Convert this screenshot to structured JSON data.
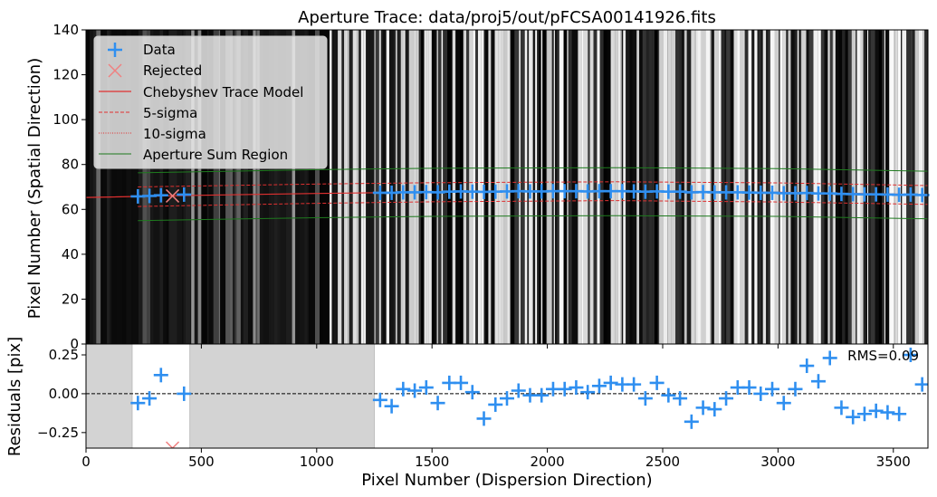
{
  "chart_data": [
    {
      "type": "scatter",
      "title": "Aperture Trace: data/proj5/out/pFCSA00141926.fits",
      "xlabel": "",
      "ylabel": "Pixel Number (Spatial Direction)",
      "xlim": [
        0,
        3650
      ],
      "ylim": [
        0,
        140
      ],
      "y_ticks": [
        0,
        20,
        40,
        60,
        80,
        100,
        120,
        140
      ],
      "grid": false,
      "legend_position": "top-left",
      "background": "2D spectral image rendered in grayscale (black with white vertical bands)",
      "legend": [
        "Data",
        "Rejected",
        "Chebyshev Trace Model",
        "5-sigma",
        "10-sigma",
        "Aperture Sum Region"
      ],
      "series": [
        {
          "name": "Data",
          "marker": "+",
          "color": "#2f8ff0",
          "x": [
            225,
            275,
            325,
            425,
            1275,
            1325,
            1375,
            1425,
            1475,
            1525,
            1575,
            1625,
            1675,
            1725,
            1775,
            1825,
            1875,
            1925,
            1975,
            2025,
            2075,
            2125,
            2175,
            2225,
            2275,
            2325,
            2375,
            2425,
            2475,
            2525,
            2575,
            2625,
            2675,
            2725,
            2775,
            2825,
            2875,
            2925,
            2975,
            3025,
            3075,
            3125,
            3175,
            3225,
            3275,
            3325,
            3375,
            3425,
            3475,
            3525,
            3575,
            3625
          ],
          "y": [
            65.8,
            66.0,
            66.3,
            66.6,
            67.4,
            67.4,
            67.6,
            67.6,
            67.7,
            67.6,
            67.9,
            68.0,
            67.9,
            67.8,
            67.9,
            68.0,
            68.1,
            68.0,
            68.0,
            68.1,
            68.1,
            68.1,
            68.0,
            68.1,
            68.1,
            68.1,
            68.0,
            67.9,
            68.0,
            67.9,
            67.9,
            67.6,
            67.7,
            67.6,
            67.6,
            67.6,
            67.5,
            67.4,
            67.4,
            67.2,
            67.2,
            67.3,
            67.1,
            67.1,
            66.9,
            66.8,
            66.7,
            66.7,
            66.6,
            66.5,
            66.6,
            66.4
          ]
        },
        {
          "name": "Rejected",
          "marker": "x",
          "color": "#f08080",
          "x": [
            375
          ],
          "y": [
            66.0
          ]
        },
        {
          "name": "Chebyshev Trace Model",
          "line": "solid",
          "color": "#e03030",
          "x": [
            0,
            500,
            1000,
            1500,
            2000,
            2500,
            3000,
            3500,
            3650
          ],
          "y": [
            65.3,
            66.3,
            67.1,
            67.7,
            68.0,
            68.0,
            67.6,
            66.8,
            66.5
          ]
        },
        {
          "name": "5-sigma",
          "line": "dashed",
          "color": "#e03030",
          "x": [
            225,
            1000,
            1500,
            2300,
            3000,
            3650
          ],
          "upper": [
            70.0,
            71.3,
            71.9,
            72.3,
            71.8,
            70.6
          ],
          "lower": [
            61.3,
            62.7,
            63.4,
            63.9,
            63.3,
            62.2
          ]
        },
        {
          "name": "Aperture Sum Region",
          "line": "solid",
          "color": "#1e7a1e",
          "x": [
            225,
            1000,
            1500,
            2300,
            3000,
            3650
          ],
          "upper": [
            76.3,
            77.7,
            78.3,
            78.6,
            78.2,
            77.0
          ],
          "lower": [
            55.0,
            56.3,
            56.9,
            57.2,
            56.9,
            55.8
          ]
        }
      ]
    },
    {
      "type": "scatter",
      "xlabel": "Pixel Number (Dispersion Direction)",
      "ylabel": "Residuals [pix]",
      "xlim": [
        0,
        3650
      ],
      "ylim": [
        -0.35,
        0.32
      ],
      "x_ticks": [
        0,
        500,
        1000,
        1500,
        2000,
        2500,
        3000,
        3500
      ],
      "y_ticks": [
        -0.25,
        0.0,
        0.25
      ],
      "y_tick_labels": [
        "−0.25",
        "0.00",
        "0.25"
      ],
      "grid": false,
      "annotation": "RMS=0.09",
      "reference_line": 0,
      "shaded_regions": [
        [
          0,
          200
        ],
        [
          450,
          1250
        ]
      ],
      "series": [
        {
          "name": "Data",
          "marker": "+",
          "color": "#2f8ff0",
          "x": [
            225,
            275,
            325,
            425,
            1275,
            1325,
            1375,
            1425,
            1475,
            1525,
            1575,
            1625,
            1675,
            1725,
            1775,
            1825,
            1875,
            1925,
            1975,
            2025,
            2075,
            2125,
            2175,
            2225,
            2275,
            2325,
            2375,
            2425,
            2475,
            2525,
            2575,
            2625,
            2675,
            2725,
            2775,
            2825,
            2875,
            2925,
            2975,
            3025,
            3075,
            3125,
            3175,
            3225,
            3275,
            3325,
            3375,
            3425,
            3475,
            3525,
            3575,
            3625
          ],
          "y": [
            -0.06,
            -0.03,
            0.12,
            0.0,
            -0.04,
            -0.08,
            0.03,
            0.02,
            0.04,
            -0.06,
            0.07,
            0.07,
            0.01,
            -0.16,
            -0.07,
            -0.03,
            0.02,
            -0.01,
            -0.01,
            0.03,
            0.03,
            0.04,
            0.01,
            0.05,
            0.07,
            0.06,
            0.06,
            -0.03,
            0.07,
            -0.01,
            -0.03,
            -0.18,
            -0.09,
            -0.1,
            -0.03,
            0.04,
            0.04,
            0.0,
            0.03,
            -0.06,
            0.03,
            0.18,
            0.08,
            0.23,
            -0.09,
            -0.15,
            -0.13,
            -0.11,
            -0.12,
            -0.13,
            0.25,
            0.06
          ]
        },
        {
          "name": "Rejected",
          "marker": "x",
          "color": "#f08080",
          "x": [
            375
          ],
          "y": [
            -0.35
          ]
        }
      ]
    }
  ]
}
